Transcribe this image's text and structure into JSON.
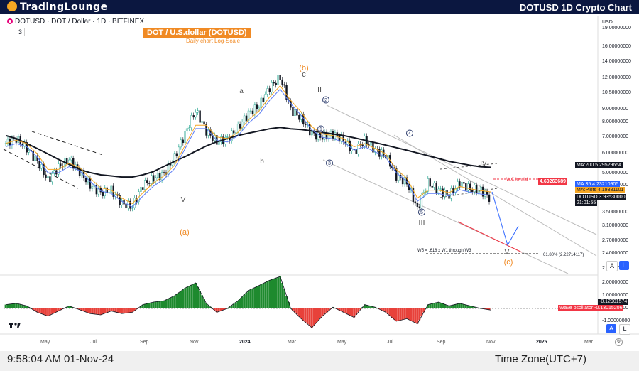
{
  "header": {
    "logo_text": "TradingLounge",
    "title": "DOTUSD 1D Crypto Chart"
  },
  "symbol_line": "DOTUSD · DOT / Dollar · 1D · BITFINEX",
  "indicator_count": "3",
  "banner": "DOT / U.S.dollar (DOTUSD)",
  "subbanner": "Daily chart  Log-Scale",
  "currency": "USD",
  "footer": {
    "time": "9:58:04 AM 01-Nov-24",
    "timezone": "Time Zone(UTC+7)"
  },
  "chart_data": {
    "type": "line",
    "scale": "log",
    "price_axis": [
      "19.00000000",
      "16.00000000",
      "14.00000000",
      "12.00000000",
      "10.50000000",
      "9.00000000",
      "8.00000000",
      "7.00000000",
      "6.00000000",
      "5.00000000",
      "4.50000000",
      "3.50000000",
      "3.10000000",
      "2.70000000",
      "2.40000000",
      "2.10000000"
    ],
    "osc_axis": [
      "2.00000000",
      "1.00000000",
      "0.00000000",
      "-1.00000000"
    ],
    "x_labels": [
      "May",
      "Jul",
      "Sep",
      "Nov",
      "2024",
      "Mar",
      "May",
      "Jul",
      "Sep",
      "Nov",
      "2025",
      "Mar"
    ],
    "price_tags": [
      {
        "label": "MA:200",
        "value": "5.29529654",
        "bg": "#131722",
        "fg": "#ffffff"
      },
      {
        "label": "W.C.Invalid",
        "value": "4.60263689",
        "bg": "#f23645",
        "fg": "#ffffff"
      },
      {
        "label": "MA:35",
        "value": "4.23210905",
        "bg": "#2962ff",
        "fg": "#ffffff"
      },
      {
        "label": "MA:Plots",
        "value": "4.19381101",
        "bg": "#f5a623",
        "fg": "#131722"
      },
      {
        "label": "DOTUSD",
        "value": "3.93530000",
        "bg": "#131722",
        "fg": "#ffffff"
      },
      {
        "label": "",
        "value": "21:01:55",
        "bg": "#131722",
        "fg": "#ffffff"
      }
    ],
    "osc_tags": [
      {
        "label": "",
        "value": "-0.12901574",
        "bg": "#131722",
        "fg": "#ffffff"
      },
      {
        "label": "Wave oscillator",
        "value": "-0.13015206",
        "bg": "#f23645",
        "fg": "#ffffff"
      }
    ],
    "wave_labels": [
      "(b)",
      "c",
      "a",
      "b",
      "V",
      "(a)",
      "II",
      "I",
      "2",
      "1",
      "3",
      "4",
      "5",
      "III",
      "IV",
      "V",
      "(c)"
    ],
    "annotation": "W5 = .618 x W1 through W3",
    "fib_label": "61.80% (2.22714117)",
    "invalid_label": "W.C.Invalid",
    "price_series": [
      6.6,
      6.9,
      6.3,
      5.6,
      4.7,
      5.3,
      5.7,
      5.1,
      4.5,
      4.2,
      4.3,
      3.8,
      3.7,
      4.5,
      4.8,
      5.0,
      5.8,
      7.2,
      8.9,
      7.4,
      6.7,
      6.9,
      7.6,
      8.7,
      9.3,
      11.0,
      12.1,
      9.0,
      8.3,
      7.2,
      7.0,
      7.2,
      6.8,
      6.1,
      6.8,
      6.2,
      5.9,
      4.9,
      4.6,
      3.6,
      4.6,
      4.3,
      4.1,
      4.6,
      4.35,
      4.3,
      3.94
    ],
    "ma200": [
      7.1,
      6.9,
      6.6,
      6.3,
      6.0,
      5.7,
      5.45,
      5.2,
      5.05,
      4.95,
      4.9,
      4.85,
      4.85,
      4.95,
      5.1,
      5.35,
      5.6,
      5.85,
      6.15,
      6.45,
      6.7,
      6.9,
      7.1,
      7.25,
      7.4,
      7.55,
      7.65,
      7.55,
      7.5,
      7.4,
      7.3,
      7.2,
      7.1,
      6.95,
      6.8,
      6.65,
      6.5,
      6.35,
      6.2,
      6.05,
      5.9,
      5.75,
      5.6,
      5.5,
      5.4,
      5.33,
      5.3
    ],
    "ma35": [
      6.6,
      6.8,
      6.6,
      6.0,
      5.2,
      5.2,
      5.5,
      5.3,
      4.8,
      4.4,
      4.3,
      4.0,
      3.8,
      4.2,
      4.6,
      4.9,
      5.4,
      6.5,
      7.8,
      7.8,
      7.0,
      6.9,
      7.3,
      8.2,
      8.9,
      10.1,
      11.2,
      9.8,
      8.8,
      7.7,
      7.2,
      7.1,
      6.9,
      6.4,
      6.6,
      6.3,
      6.0,
      5.2,
      4.8,
      4.0,
      4.3,
      4.3,
      4.2,
      4.45,
      4.35,
      4.28,
      4.23
    ],
    "oscillator": [
      0.3,
      0.4,
      0.2,
      -0.3,
      -0.6,
      -0.2,
      0.2,
      -0.1,
      -0.4,
      -0.5,
      -0.2,
      -0.4,
      -0.3,
      0.3,
      0.5,
      0.6,
      1.0,
      1.6,
      2.0,
      0.4,
      -0.3,
      0.0,
      0.6,
      1.4,
      1.8,
      2.2,
      2.5,
      0.0,
      -0.8,
      -1.5,
      -0.6,
      0.1,
      -0.3,
      -0.7,
      0.3,
      0.1,
      -0.3,
      -1.0,
      -0.8,
      -1.2,
      0.3,
      0.5,
      0.2,
      0.4,
      0.2,
      0.0,
      -0.13
    ]
  }
}
